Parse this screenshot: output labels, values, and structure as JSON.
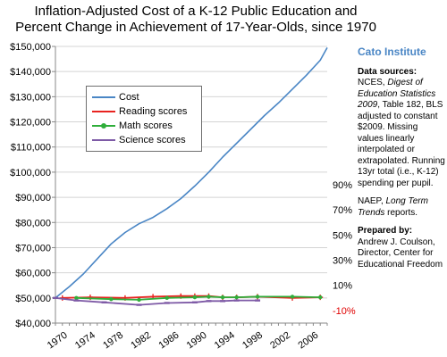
{
  "title_lines": [
    "Inflation-Adjusted  Cost of a K-12 Public Education and",
    "Percent Change  in Achievement  of 17-Year-Olds, since 1970"
  ],
  "sidebar": {
    "org": "Cato Institute",
    "sources_heading": "Data sources:",
    "sources_pre": "NCES, ",
    "sources_italic": "Digest of Education Statistics 2009",
    "sources_post": ", Table 182, BLS adjusted to constant $2009. Missing values linearly interpolated or extrapolated. Running 13yr total (i.e., K-12) spending per pupil.",
    "naep_pre": "NAEP, ",
    "naep_italic": "Long Term Trends",
    "naep_post": " reports.",
    "prepared_heading": "Prepared by:",
    "prepared_body": "Andrew J. Coulson, Director, Center for Educational Freedom"
  },
  "chart_data": {
    "type": "line",
    "title": "Inflation-Adjusted Cost of a K-12 Public Education and Percent Change in Achievement of 17-Year-Olds, since 1970",
    "x_ticks": [
      "1970",
      "1974",
      "1978",
      "1982",
      "1986",
      "1990",
      "1994",
      "1998",
      "2002",
      "2006"
    ],
    "xlim": [
      1970,
      2009
    ],
    "y_left": {
      "ticks": [
        "$40,000",
        "$50,000",
        "$60,000",
        "$70,000",
        "$80,000",
        "$90,000",
        "$100,000",
        "$110,000",
        "$120,000",
        "$130,000",
        "$140,000",
        "$150,000"
      ],
      "ylim": [
        40000,
        150000
      ]
    },
    "y_right": {
      "ticks": [
        "-10%",
        "10%",
        "30%",
        "50%",
        "70%",
        "90%"
      ],
      "tick_values": [
        -10,
        10,
        30,
        50,
        70,
        90
      ],
      "ylim": [
        -20,
        200
      ]
    },
    "legend_placement": "top-left",
    "colors": {
      "cost": "#4a86c5",
      "reading": "#e8231f",
      "math": "#2fae3a",
      "science": "#7e5aa6",
      "axis": "#888888",
      "grid": "#d4d4d4",
      "negative_tick": "#e00000"
    },
    "series": [
      {
        "name": "Cost",
        "axis": "left",
        "x": [
          1970,
          1972,
          1974,
          1976,
          1978,
          1980,
          1982,
          1984,
          1986,
          1988,
          1990,
          1992,
          1994,
          1996,
          1998,
          2000,
          2002,
          2004,
          2006,
          2008,
          2009
        ],
        "y": [
          50000,
          54500,
          59500,
          65500,
          71500,
          76000,
          79500,
          82000,
          85500,
          89500,
          94500,
          100000,
          106000,
          111500,
          117000,
          122500,
          127500,
          133000,
          138500,
          144500,
          149500
        ],
        "marker": "none"
      },
      {
        "name": "Reading scores",
        "axis": "right",
        "x": [
          1971,
          1975,
          1980,
          1984,
          1988,
          1990,
          1992,
          1994,
          1996,
          1999,
          2004,
          2008
        ],
        "y": [
          0,
          0.5,
          0,
          1,
          1.5,
          1.5,
          1.5,
          0.5,
          0.5,
          1,
          0,
          0.5
        ],
        "marker": "plus"
      },
      {
        "name": "Math scores",
        "axis": "right",
        "x": [
          1973,
          1978,
          1982,
          1986,
          1990,
          1992,
          1994,
          1996,
          1999,
          2004,
          2008
        ],
        "y": [
          0,
          -1,
          -1.5,
          0,
          0.5,
          1,
          0.5,
          0.5,
          1,
          1,
          0.5
        ],
        "marker": "dot"
      },
      {
        "name": "Science scores",
        "axis": "right",
        "x": [
          1970,
          1973,
          1977,
          1982,
          1986,
          1990,
          1992,
          1994,
          1996,
          1999
        ],
        "y": [
          0,
          -2,
          -3.5,
          -5.5,
          -4,
          -3.5,
          -2.5,
          -2.5,
          -2,
          -2
        ],
        "marker": "dash"
      }
    ]
  }
}
